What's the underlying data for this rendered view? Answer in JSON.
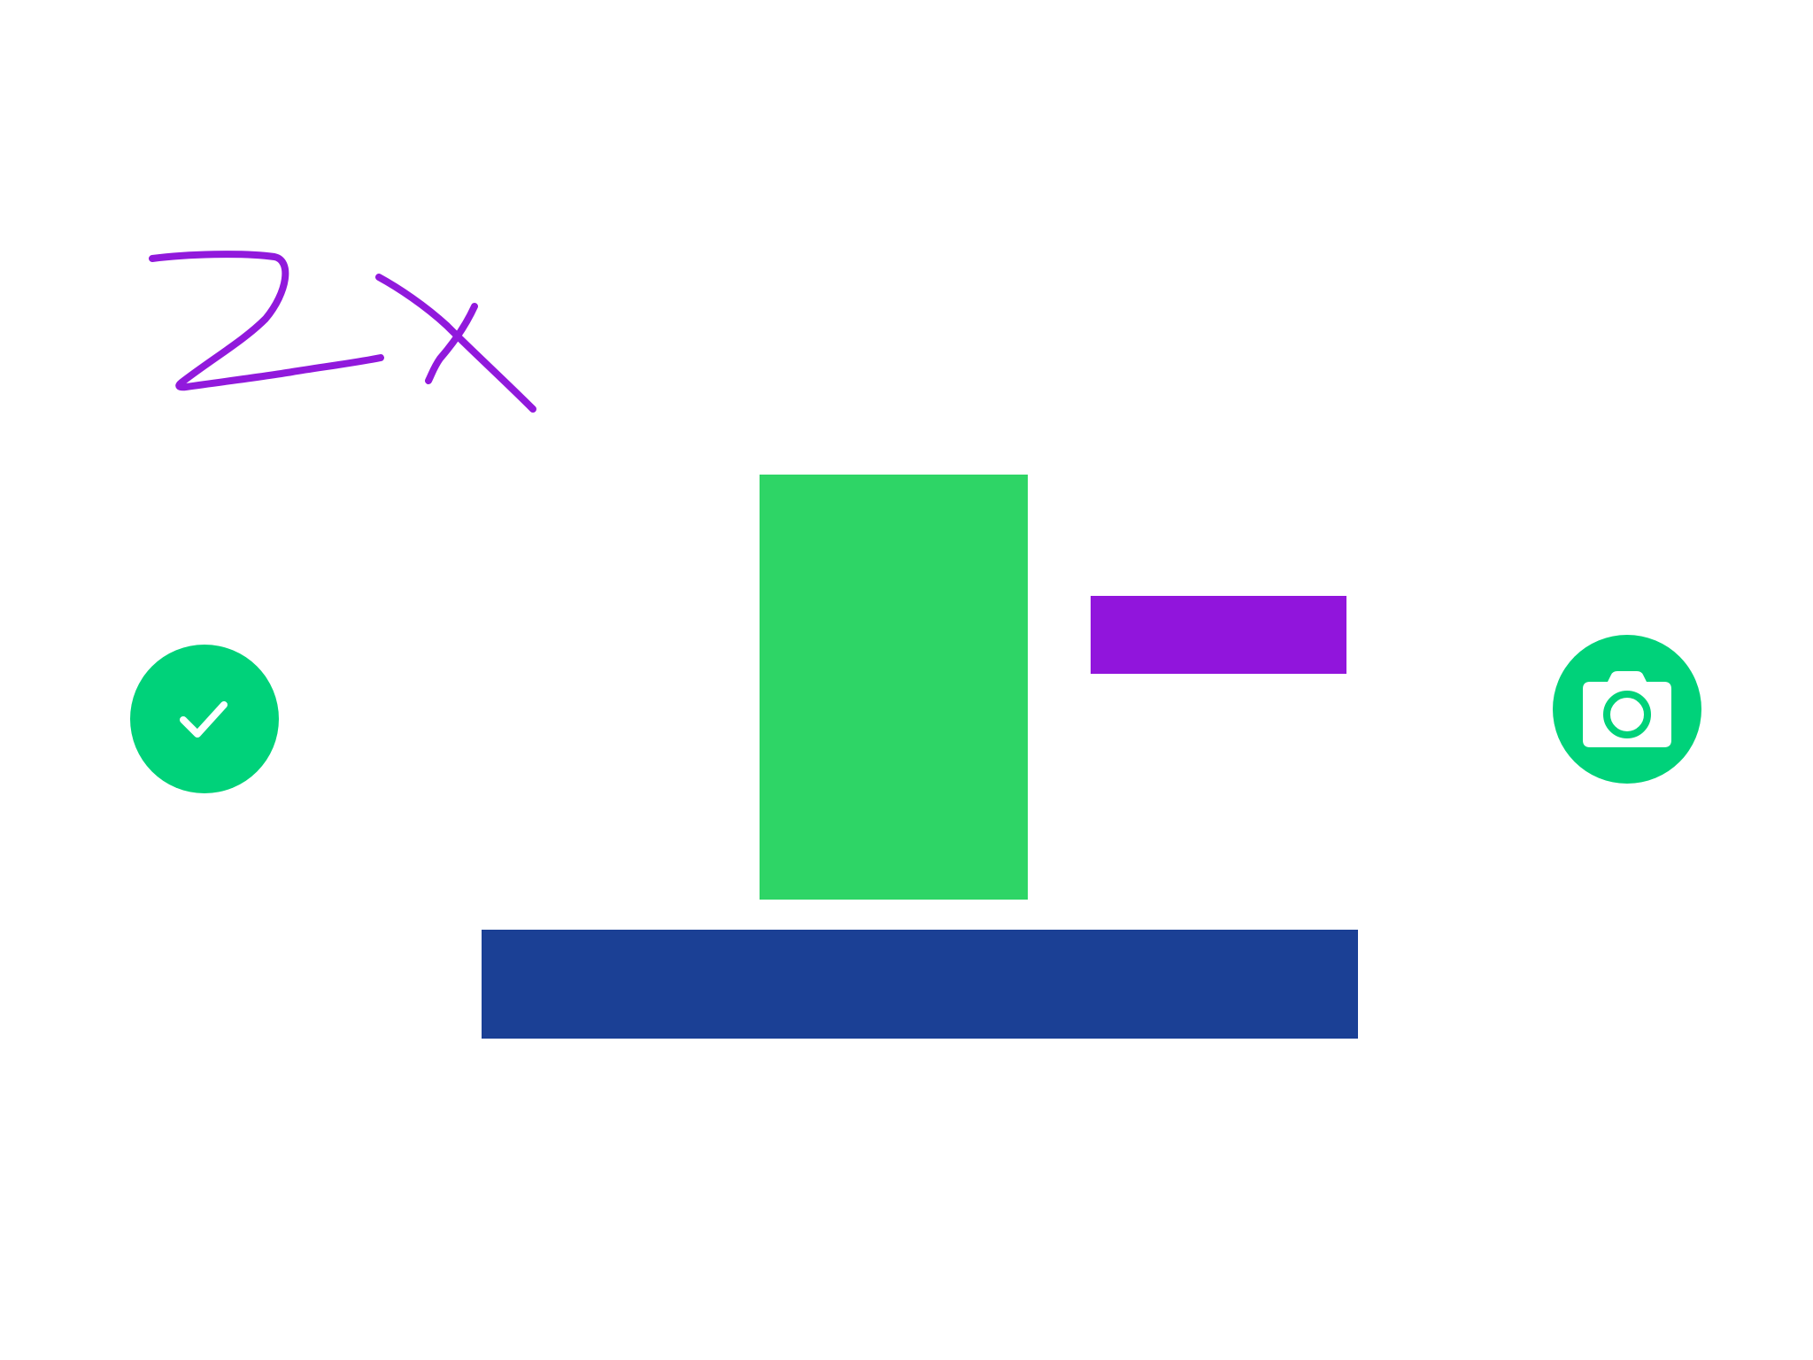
{
  "annotation": {
    "text": "2x",
    "color": "#9119dc"
  },
  "blocks": {
    "green": {
      "color": "#2ed566"
    },
    "purple": {
      "color": "#9115dc"
    },
    "blue": {
      "color": "#1b4095"
    }
  },
  "confirm_button": {
    "icon": "checkmark-icon",
    "color": "#00d27a",
    "icon_color": "#ffffff"
  },
  "camera_button": {
    "icon": "camera-icon",
    "color": "#00d27a",
    "icon_color": "#ffffff"
  }
}
